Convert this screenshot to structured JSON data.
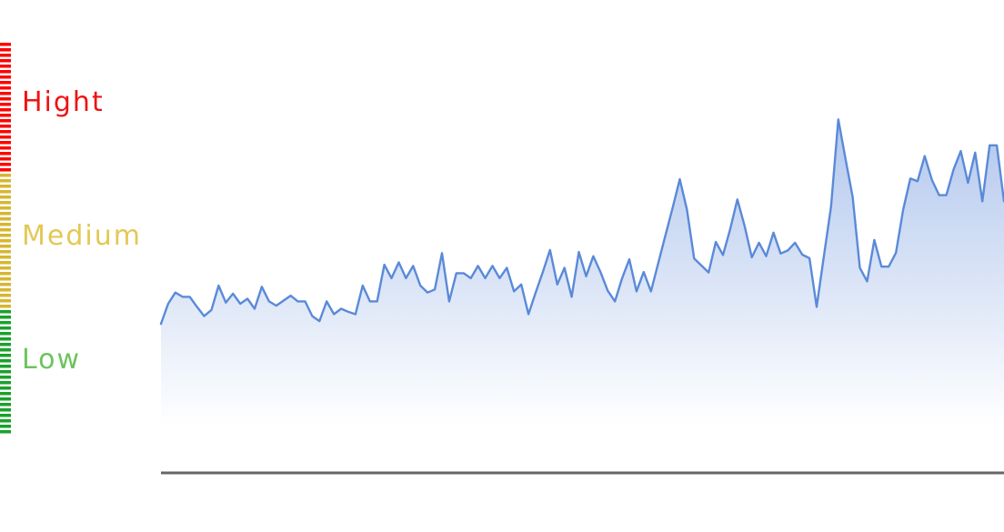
{
  "scale": {
    "levels": [
      {
        "label": "Hight",
        "color": "#ef1313"
      },
      {
        "label": "Medium",
        "color": "#e3c855"
      },
      {
        "label": "Low",
        "color": "#6cc45c"
      }
    ],
    "colors": {
      "high": "#ff0000",
      "medium": "#d6b632",
      "low": "#19a12a"
    }
  },
  "chart_data": {
    "type": "area",
    "title": "",
    "xlabel": "",
    "ylabel": "",
    "grid": false,
    "legend": "none",
    "ylim": [
      0,
      100
    ],
    "line_color": "#5a8ad8",
    "fill_color": "#aec4ec",
    "series": [
      {
        "values": [
          26.8,
          32.0,
          34.9,
          33.8,
          33.8,
          31.2,
          28.8,
          30.4,
          36.7,
          32.3,
          34.6,
          32.0,
          33.3,
          30.7,
          36.4,
          32.6,
          31.5,
          32.8,
          34.1,
          32.6,
          32.6,
          28.8,
          27.5,
          32.6,
          29.3,
          30.7,
          29.9,
          29.3,
          36.7,
          32.6,
          32.6,
          42.1,
          38.6,
          42.7,
          38.6,
          41.8,
          36.7,
          34.9,
          35.7,
          45.1,
          32.6,
          39.9,
          39.9,
          38.6,
          41.8,
          38.6,
          41.8,
          38.6,
          41.3,
          35.2,
          37.0,
          29.3,
          34.9,
          40.2,
          45.9,
          37.0,
          41.3,
          33.8,
          45.4,
          39.1,
          44.3,
          40.2,
          35.4,
          32.6,
          38.6,
          43.5,
          35.2,
          40.2,
          35.2,
          42.4,
          49.6,
          56.7,
          64.2,
          56.3,
          43.7,
          41.9,
          40.1,
          48.0,
          44.6,
          51.3,
          59.0,
          52.1,
          44.0,
          47.8,
          44.3,
          50.4,
          45.0,
          45.8,
          47.8,
          44.7,
          43.8,
          31.2,
          44.2,
          57.1,
          79.7,
          69.5,
          59.6,
          41.3,
          37.8,
          48.5,
          41.6,
          41.6,
          45.2,
          56.3,
          64.4,
          63.7,
          70.2,
          64.0,
          60.1,
          60.1,
          66.7,
          71.5,
          63.3,
          71.1,
          58.5,
          73.0,
          73.0,
          58.5
        ]
      }
    ]
  }
}
